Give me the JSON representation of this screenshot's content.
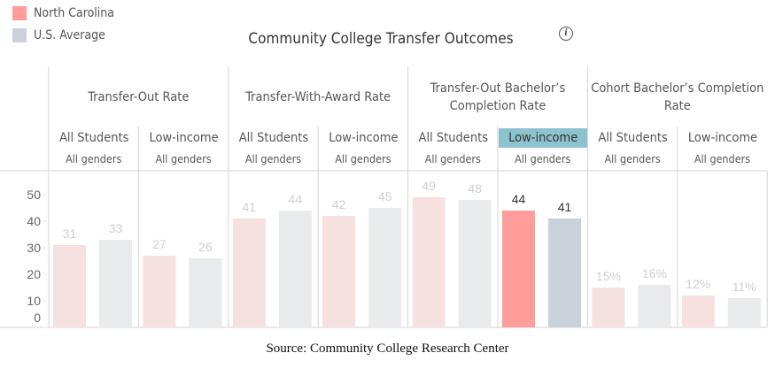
{
  "legend": [
    {
      "label": "North Carolina",
      "color": "#ff9d9a"
    },
    {
      "label": "U.S. Average",
      "color": "#c9d1da"
    }
  ],
  "title": "Community College Transfer Outcomes",
  "info_icon": "info-icon",
  "source": "Source: Community College Research Center",
  "chart_data": {
    "type": "bar",
    "title": "Community College Transfer Outcomes",
    "groups": [
      {
        "label": "Transfer-Out Rate",
        "columns": [
          {
            "label": "All Students",
            "sub": "All genders"
          },
          {
            "label": "Low-income",
            "sub": "All genders"
          }
        ]
      },
      {
        "label": "Transfer-With-Award Rate",
        "columns": [
          {
            "label": "All Students",
            "sub": "All genders"
          },
          {
            "label": "Low-income",
            "sub": "All genders"
          }
        ]
      },
      {
        "label": "Transfer-Out Bachelor’s Completion Rate",
        "columns": [
          {
            "label": "All Students",
            "sub": "All genders"
          },
          {
            "label": "Low-income",
            "sub": "All genders",
            "highlighted": true
          }
        ]
      },
      {
        "label": "Cohort Bachelor’s Completion Rate",
        "columns": [
          {
            "label": "All Students",
            "sub": "All genders"
          },
          {
            "label": "Low-income",
            "sub": "All genders"
          }
        ]
      }
    ],
    "series": [
      {
        "name": "North Carolina",
        "values": [
          31,
          27,
          41,
          42,
          49,
          44,
          15,
          12
        ],
        "labels": [
          "31",
          "27",
          "41",
          "42",
          "49",
          "44",
          "15%",
          "12%"
        ],
        "color": "#ff9d9a",
        "faded_color": "#f6e0e0"
      },
      {
        "name": "U.S. Average",
        "values": [
          33,
          26,
          44,
          45,
          48,
          41,
          16,
          11
        ],
        "labels": [
          "33",
          "26",
          "44",
          "45",
          "48",
          "41",
          "16%",
          "11%"
        ],
        "color": "#c9d1da",
        "faded_color": "#e9eaec"
      }
    ],
    "yticks": [
      0,
      10,
      20,
      30,
      40,
      50
    ],
    "ylim": [
      0,
      55
    ],
    "grid": false,
    "legend_position": "top-left"
  }
}
